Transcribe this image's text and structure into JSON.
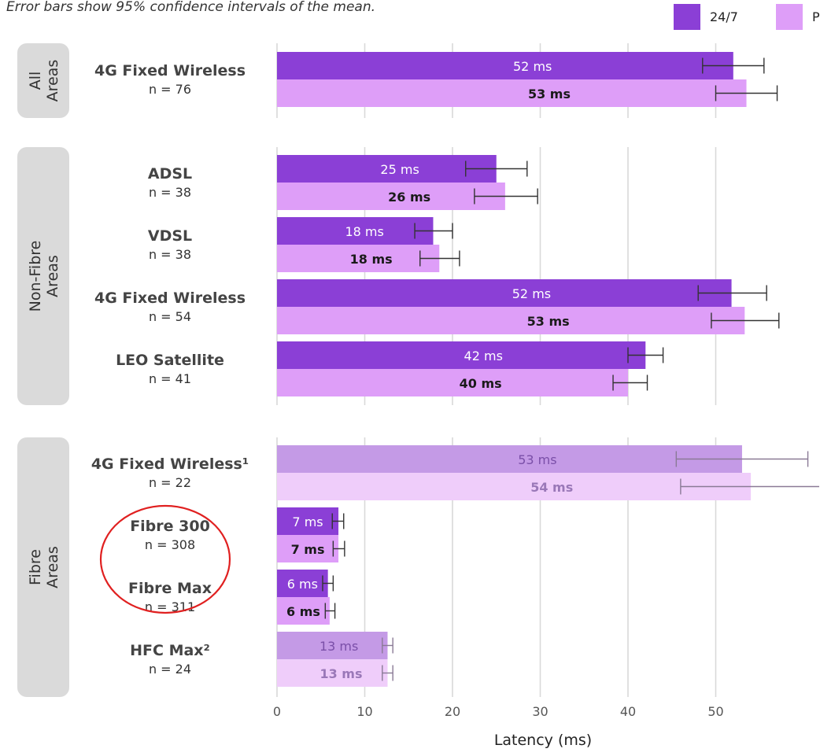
{
  "chart_data": {
    "type": "bar",
    "orientation": "horizontal",
    "subtitle": "Error bars show 95% confidence intervals of the mean.",
    "xlabel": "Latency (ms)",
    "xlim": [
      0,
      57
    ],
    "xticks": [
      0,
      10,
      20,
      30,
      40,
      50
    ],
    "grid": true,
    "legend_position": "top-right",
    "series_colors": {
      "24/7": "#8b3fd6",
      "Peak": "#de9ef8"
    },
    "series": [
      {
        "name": "24/7",
        "color": "#8b3fd6"
      },
      {
        "name": "Peak",
        "color": "#de9ef8"
      }
    ],
    "groups": [
      {
        "name": "All Areas",
        "name_lines": [
          "All",
          "Areas"
        ],
        "categories": [
          {
            "label": "4G Fixed Wireless",
            "n": "n = 76",
            "faded": false,
            "values": [
              {
                "series": "24/7",
                "value": 52,
                "label": "52 ms",
                "ci": [
                  48.5,
                  55.5
                ]
              },
              {
                "series": "Peak",
                "value": 53.5,
                "label": "53 ms",
                "ci": [
                  50,
                  57
                ]
              }
            ]
          }
        ]
      },
      {
        "name": "Non-Fibre Areas",
        "name_lines": [
          "Non-Fibre",
          "Areas"
        ],
        "categories": [
          {
            "label": "ADSL",
            "n": "n = 38",
            "faded": false,
            "values": [
              {
                "series": "24/7",
                "value": 25,
                "label": "25 ms",
                "ci": [
                  21.5,
                  28.5
                ]
              },
              {
                "series": "Peak",
                "value": 26,
                "label": "26 ms",
                "ci": [
                  22.5,
                  29.7
                ]
              }
            ]
          },
          {
            "label": "VDSL",
            "n": "n = 38",
            "faded": false,
            "values": [
              {
                "series": "24/7",
                "value": 17.8,
                "label": "18 ms",
                "ci": [
                  15.7,
                  20
                ]
              },
              {
                "series": "Peak",
                "value": 18.5,
                "label": "18 ms",
                "ci": [
                  16.3,
                  20.8
                ]
              }
            ]
          },
          {
            "label": "4G Fixed Wireless",
            "n": "n = 54",
            "faded": false,
            "values": [
              {
                "series": "24/7",
                "value": 51.8,
                "label": "52 ms",
                "ci": [
                  48,
                  55.8
                ]
              },
              {
                "series": "Peak",
                "value": 53.3,
                "label": "53 ms",
                "ci": [
                  49.5,
                  57.2
                ]
              }
            ]
          },
          {
            "label": "LEO Satellite",
            "n": "n = 41",
            "faded": false,
            "values": [
              {
                "series": "24/7",
                "value": 42,
                "label": "42 ms",
                "ci": [
                  40,
                  44
                ]
              },
              {
                "series": "Peak",
                "value": 40,
                "label": "40 ms",
                "ci": [
                  38.3,
                  42.2
                ]
              }
            ]
          }
        ]
      },
      {
        "name": "Fibre Areas",
        "name_lines": [
          "Fibre",
          "Areas"
        ],
        "categories": [
          {
            "label": "4G Fixed Wireless¹",
            "n": "n = 22",
            "faded": true,
            "values": [
              {
                "series": "24/7",
                "value": 53,
                "label": "53 ms",
                "ci": [
                  45.5,
                  60.5
                ]
              },
              {
                "series": "Peak",
                "value": 54,
                "label": "54 ms",
                "ci": [
                  46,
                  62
                ]
              }
            ]
          },
          {
            "label": "Fibre 300",
            "n": "n = 308",
            "faded": false,
            "values": [
              {
                "series": "24/7",
                "value": 7,
                "label": "7 ms",
                "ci": [
                  6.3,
                  7.6
                ]
              },
              {
                "series": "Peak",
                "value": 7,
                "label": "7 ms",
                "ci": [
                  6.4,
                  7.7
                ]
              }
            ]
          },
          {
            "label": "Fibre Max",
            "n": "n = 311",
            "faded": false,
            "values": [
              {
                "series": "24/7",
                "value": 5.8,
                "label": "6 ms",
                "ci": [
                  5.2,
                  6.4
                ]
              },
              {
                "series": "Peak",
                "value": 6,
                "label": "6 ms",
                "ci": [
                  5.5,
                  6.6
                ]
              }
            ]
          },
          {
            "label": "HFC Max²",
            "n": "n = 24",
            "faded": true,
            "values": [
              {
                "series": "24/7",
                "value": 12.6,
                "label": "13 ms",
                "ci": [
                  12,
                  13.2
                ]
              },
              {
                "series": "Peak",
                "value": 12.6,
                "label": "13 ms",
                "ci": [
                  12,
                  13.2
                ]
              }
            ]
          }
        ]
      }
    ],
    "annotations": [
      {
        "type": "ellipse",
        "color": "#e02020",
        "encloses": [
          "Fibre 300",
          "Fibre Max"
        ]
      }
    ]
  }
}
